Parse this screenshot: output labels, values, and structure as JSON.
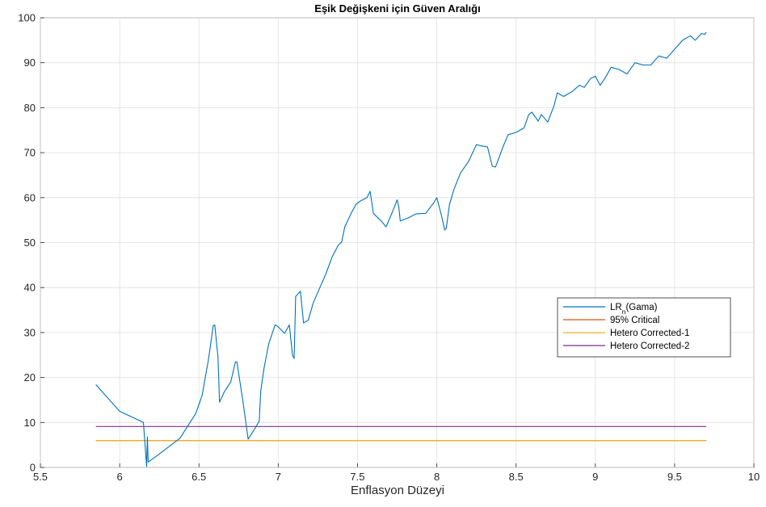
{
  "chart_data": {
    "type": "line",
    "title": "Eşik Değişkeni için Güven Aralığı",
    "xlabel": "Enflasyon Düzeyi",
    "ylabel": "",
    "xlim": [
      5.5,
      10
    ],
    "ylim": [
      0,
      100
    ],
    "x_ticks": [
      5.5,
      6,
      6.5,
      7,
      7.5,
      8,
      8.5,
      9,
      9.5,
      10
    ],
    "x_tick_labels": [
      "5.5",
      "6",
      "6.5",
      "7",
      "7.5",
      "8",
      "8.5",
      "9",
      "9.5",
      "10"
    ],
    "y_ticks": [
      0,
      10,
      20,
      30,
      40,
      50,
      60,
      70,
      80,
      90,
      100
    ],
    "y_tick_labels": [
      "0",
      "10",
      "20",
      "30",
      "40",
      "50",
      "60",
      "70",
      "80",
      "90",
      "100"
    ],
    "grid": true,
    "legend_position": "right",
    "series": [
      {
        "name": "LR_n(Gama)",
        "color": "#0072BD",
        "points": [
          [
            5.85,
            18.4
          ],
          [
            6.0,
            12.5
          ],
          [
            6.15,
            10.0
          ],
          [
            6.16,
            5.0
          ],
          [
            6.17,
            0.2
          ],
          [
            6.175,
            6.8
          ],
          [
            6.18,
            1.2
          ],
          [
            6.25,
            3.0
          ],
          [
            6.38,
            6.5
          ],
          [
            6.48,
            12.0
          ],
          [
            6.52,
            16.0
          ],
          [
            6.56,
            24.0
          ],
          [
            6.59,
            31.5
          ],
          [
            6.6,
            31.7
          ],
          [
            6.62,
            24.5
          ],
          [
            6.63,
            14.5
          ],
          [
            6.66,
            16.8
          ],
          [
            6.7,
            19.0
          ],
          [
            6.73,
            23.5
          ],
          [
            6.74,
            23.4
          ],
          [
            6.78,
            14.0
          ],
          [
            6.81,
            6.3
          ],
          [
            6.85,
            8.5
          ],
          [
            6.88,
            10.3
          ],
          [
            6.89,
            17.0
          ],
          [
            6.91,
            22.0
          ],
          [
            6.94,
            27.5
          ],
          [
            6.98,
            31.7
          ],
          [
            7.0,
            31.3
          ],
          [
            7.04,
            29.8
          ],
          [
            7.07,
            31.7
          ],
          [
            7.09,
            25.0
          ],
          [
            7.1,
            24.2
          ],
          [
            7.11,
            38.0
          ],
          [
            7.14,
            39.2
          ],
          [
            7.16,
            32.1
          ],
          [
            7.19,
            32.8
          ],
          [
            7.22,
            36.5
          ],
          [
            7.26,
            39.8
          ],
          [
            7.3,
            43.0
          ],
          [
            7.34,
            46.8
          ],
          [
            7.38,
            49.5
          ],
          [
            7.4,
            50.1
          ],
          [
            7.42,
            53.5
          ],
          [
            7.46,
            56.5
          ],
          [
            7.49,
            58.5
          ],
          [
            7.52,
            59.3
          ],
          [
            7.56,
            60.0
          ],
          [
            7.58,
            61.4
          ],
          [
            7.6,
            56.5
          ],
          [
            7.65,
            54.8
          ],
          [
            7.68,
            53.5
          ],
          [
            7.72,
            56.8
          ],
          [
            7.75,
            59.5
          ],
          [
            7.76,
            58.0
          ],
          [
            7.77,
            54.8
          ],
          [
            7.82,
            55.5
          ],
          [
            7.87,
            56.4
          ],
          [
            7.93,
            56.5
          ],
          [
            7.98,
            58.8
          ],
          [
            8.0,
            60.0
          ],
          [
            8.03,
            56.0
          ],
          [
            8.05,
            52.8
          ],
          [
            8.06,
            53.2
          ],
          [
            8.08,
            58.5
          ],
          [
            8.11,
            62.0
          ],
          [
            8.15,
            65.5
          ],
          [
            8.2,
            68.0
          ],
          [
            8.25,
            71.8
          ],
          [
            8.28,
            71.5
          ],
          [
            8.32,
            71.3
          ],
          [
            8.35,
            67.0
          ],
          [
            8.37,
            66.8
          ],
          [
            8.42,
            71.5
          ],
          [
            8.45,
            74.0
          ],
          [
            8.5,
            74.5
          ],
          [
            8.55,
            75.5
          ],
          [
            8.58,
            78.5
          ],
          [
            8.6,
            79.0
          ],
          [
            8.64,
            77.0
          ],
          [
            8.66,
            78.5
          ],
          [
            8.7,
            76.8
          ],
          [
            8.74,
            80.5
          ],
          [
            8.76,
            83.3
          ],
          [
            8.8,
            82.5
          ],
          [
            8.85,
            83.5
          ],
          [
            8.9,
            85.0
          ],
          [
            8.93,
            84.5
          ],
          [
            8.97,
            86.5
          ],
          [
            9.0,
            87.0
          ],
          [
            9.03,
            85.0
          ],
          [
            9.06,
            86.5
          ],
          [
            9.1,
            89.0
          ],
          [
            9.15,
            88.5
          ],
          [
            9.2,
            87.5
          ],
          [
            9.25,
            90.0
          ],
          [
            9.3,
            89.5
          ],
          [
            9.35,
            89.5
          ],
          [
            9.4,
            91.5
          ],
          [
            9.45,
            91.0
          ],
          [
            9.5,
            93.0
          ],
          [
            9.55,
            95.0
          ],
          [
            9.6,
            96.0
          ],
          [
            9.63,
            95.0
          ],
          [
            9.67,
            96.5
          ],
          [
            9.69,
            96.3
          ],
          [
            9.7,
            96.8
          ]
        ]
      },
      {
        "name": "95% Critical",
        "color": "#D95319",
        "points": [
          [
            5.85,
            6.0
          ],
          [
            9.7,
            6.0
          ]
        ]
      },
      {
        "name": "Hetero Corrected-1",
        "color": "#EDB120",
        "points": [
          [
            5.85,
            6.0
          ],
          [
            9.7,
            6.0
          ]
        ]
      },
      {
        "name": "Hetero Corrected-2",
        "color": "#7E2F8E",
        "points": [
          [
            5.85,
            9.1
          ],
          [
            9.7,
            9.1
          ]
        ]
      }
    ]
  }
}
